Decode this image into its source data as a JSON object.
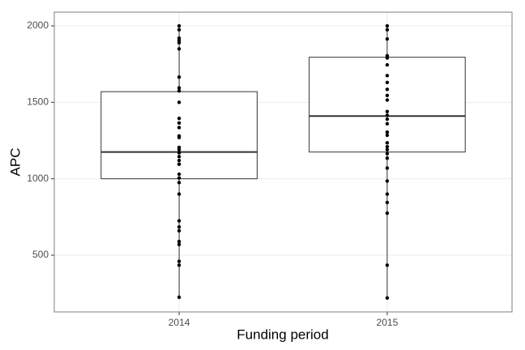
{
  "chart_data": {
    "type": "box",
    "x_label": "Funding period",
    "y_label": "APC",
    "categories": [
      "2014",
      "2015"
    ],
    "boxes": [
      {
        "min": 225,
        "q1": 1000,
        "median": 1175,
        "q3": 1570,
        "max": 2000
      },
      {
        "min": 220,
        "q1": 1175,
        "median": 1410,
        "q3": 1795,
        "max": 2000
      }
    ],
    "points": [
      [
        2000,
        1975,
        1920,
        1905,
        1890,
        1850,
        1665,
        1595,
        1575,
        1500,
        1395,
        1365,
        1335,
        1280,
        1270,
        1205,
        1190,
        1170,
        1145,
        1120,
        1095,
        1030,
        1005,
        975,
        900,
        725,
        685,
        660,
        590,
        570,
        460,
        435,
        225
      ],
      [
        2000,
        1975,
        1915,
        1805,
        1790,
        1745,
        1675,
        1630,
        1585,
        1545,
        1515,
        1440,
        1415,
        1390,
        1360,
        1305,
        1285,
        1235,
        1210,
        1190,
        1165,
        1135,
        1070,
        985,
        900,
        845,
        775,
        435,
        220
      ]
    ],
    "color": "#000000",
    "ylim": [
      129,
      2090
    ],
    "yticks": [
      500,
      1000,
      1500,
      2000
    ],
    "grid": true
  }
}
